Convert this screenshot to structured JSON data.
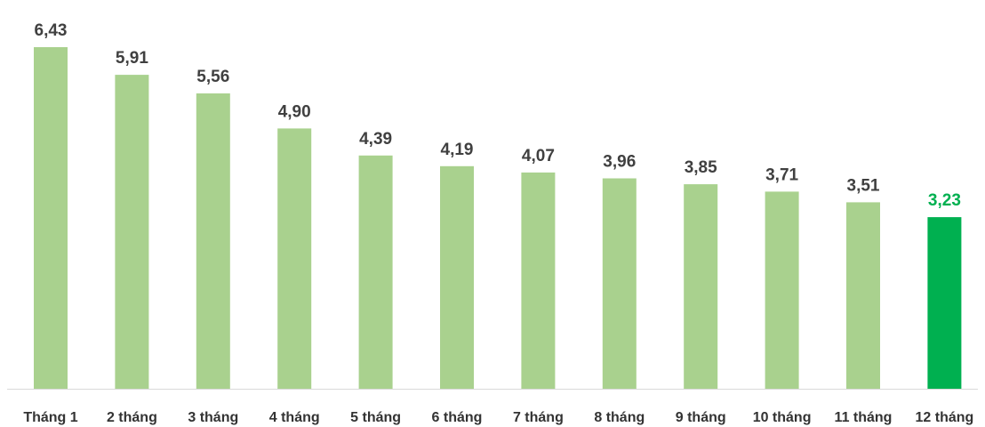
{
  "chart_data": {
    "type": "bar",
    "categories": [
      "Tháng 1",
      "2 tháng",
      "3 tháng",
      "4 tháng",
      "5 tháng",
      "6 tháng",
      "7 tháng",
      "8 tháng",
      "9 tháng",
      "10 tháng",
      "11 tháng",
      "12 tháng"
    ],
    "values": [
      6.43,
      5.91,
      5.56,
      4.9,
      4.39,
      4.19,
      4.07,
      3.96,
      3.85,
      3.71,
      3.51,
      3.23
    ],
    "value_labels": [
      "6,43",
      "5,91",
      "5,56",
      "4,90",
      "4,39",
      "4,19",
      "4,07",
      "3,96",
      "3,85",
      "3,71",
      "3,51",
      "3,23"
    ],
    "title": "",
    "xlabel": "",
    "ylabel": "",
    "ylim": [
      0,
      6.43
    ],
    "grid": false,
    "legend": "none",
    "highlight_index": 11
  },
  "colors": {
    "bar": "#a9d18e",
    "highlight_bar": "#00b050",
    "label": "#404040",
    "highlight_label": "#00b050",
    "axis": "#d9d9d9"
  }
}
